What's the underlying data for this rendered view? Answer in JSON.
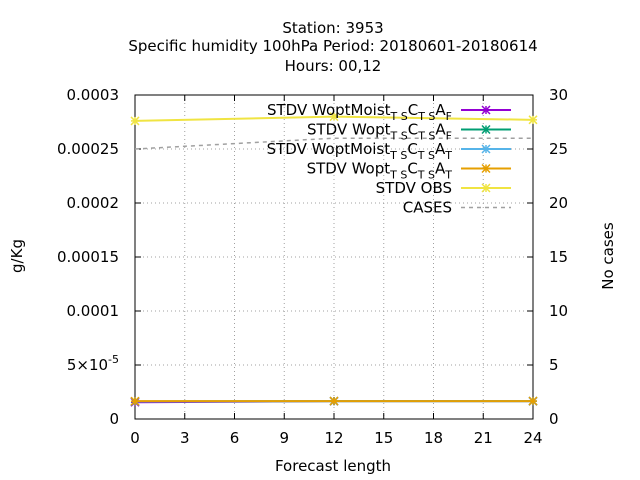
{
  "chart_data": {
    "type": "line",
    "title_lines": [
      "Station:     3953",
      "Specific humidity 100hPa   Period: 20180601-20180614",
      "Hours:  00,12"
    ],
    "xlabel": "Forecast length",
    "ylabel": "g/Kg",
    "y2label": "No cases",
    "xlim": [
      0,
      24
    ],
    "ylim": [
      0,
      0.0003
    ],
    "y2lim": [
      0,
      30
    ],
    "x_ticks": [
      0,
      3,
      6,
      9,
      12,
      15,
      18,
      21,
      24
    ],
    "x_tick_labels": [
      "0",
      "3",
      "6",
      "9",
      "12",
      "15",
      "18",
      "21",
      "24"
    ],
    "y_ticks": [
      0,
      5e-05,
      0.0001,
      0.00015,
      0.0002,
      0.00025,
      0.0003
    ],
    "y_tick_labels": [
      "0",
      "5×10-5",
      "0.0001",
      "0.00015",
      "0.0002",
      "0.00025",
      "0.0003"
    ],
    "y2_ticks": [
      0,
      5,
      10,
      15,
      20,
      25,
      30
    ],
    "y2_tick_labels": [
      "0",
      "5",
      "10",
      "15",
      "20",
      "25",
      "30"
    ],
    "grid": true,
    "legend_position": "top-right",
    "series": [
      {
        "name": "STDV WoptMoist_TSC_TSA_F",
        "label_main": "STDV WoptMoist",
        "sub1": "T S",
        "mid1": "C",
        "sub2": "T S",
        "mid2": "A",
        "sub3": "F",
        "color": "#9400d3",
        "marker": "x",
        "axis": "y",
        "x": [
          0,
          12,
          24
        ],
        "values": [
          1.55e-05,
          1.65e-05,
          1.65e-05
        ]
      },
      {
        "name": "STDV Wopt_TSC_TSA_F",
        "label_main": "STDV Wopt",
        "sub1": "T S",
        "mid1": "C",
        "sub2": "T S",
        "mid2": "A",
        "sub3": "F",
        "color": "#009e73",
        "marker": "x",
        "axis": "y",
        "x": [
          0,
          12,
          24
        ],
        "values": [
          1.62e-05,
          1.65e-05,
          1.65e-05
        ]
      },
      {
        "name": "STDV WoptMoist_TSC_TSA_T",
        "label_main": "STDV WoptMoist",
        "sub1": "T S",
        "mid1": "C",
        "sub2": "T S",
        "mid2": "A",
        "sub3": "T",
        "color": "#56b4e9",
        "marker": "x",
        "axis": "y",
        "x": [
          0,
          12,
          24
        ],
        "values": [
          1.63e-05,
          1.65e-05,
          1.65e-05
        ]
      },
      {
        "name": "STDV Wopt_TSC_TSA_T",
        "label_main": "STDV Wopt",
        "sub1": "T S",
        "mid1": "C",
        "sub2": "T S",
        "mid2": "A",
        "sub3": "T",
        "color": "#e69f00",
        "marker": "x",
        "axis": "y",
        "x": [
          0,
          12,
          24
        ],
        "values": [
          1.65e-05,
          1.66e-05,
          1.66e-05
        ]
      },
      {
        "name": "STDV OBS",
        "label_main": "STDV OBS",
        "color": "#f0e442",
        "marker": "x",
        "axis": "y",
        "x": [
          0,
          12,
          24
        ],
        "values": [
          0.000276,
          0.00028,
          0.000277
        ]
      },
      {
        "name": "CASES",
        "label_main": "CASES",
        "color": "#a0a0a0",
        "marker": "none",
        "dashed": true,
        "axis": "y2",
        "x": [
          0,
          12,
          24
        ],
        "values": [
          25,
          26,
          26
        ]
      }
    ]
  }
}
